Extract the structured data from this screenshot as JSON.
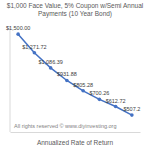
{
  "chart_data": {
    "type": "line",
    "title": "$1,000 Face Value, 5% Coupon w/Semi Annual Payments (10 Year Bond)",
    "x_label": "Annualized Rate of Return",
    "annotation": "All rights reserved © www.diyinvesting.org",
    "categories": [
      null,
      null,
      null,
      null,
      null,
      null,
      null,
      null
    ],
    "values": [
      1500.0,
      1271.72,
      1086.39,
      931.88,
      805.28,
      700.26,
      612.72,
      507.2
    ],
    "value_labels": [
      "$1,500.00",
      "$1,271.72",
      "$1,086.39",
      "$931.88",
      "$805.28",
      "$700.26",
      "$612.72",
      "$507.2"
    ],
    "ylim": [
      300,
      1600
    ],
    "color": "#4472c4",
    "marker": "circle",
    "line_style": "solid",
    "data_labels": true,
    "tick_labels": false,
    "grid": false
  }
}
